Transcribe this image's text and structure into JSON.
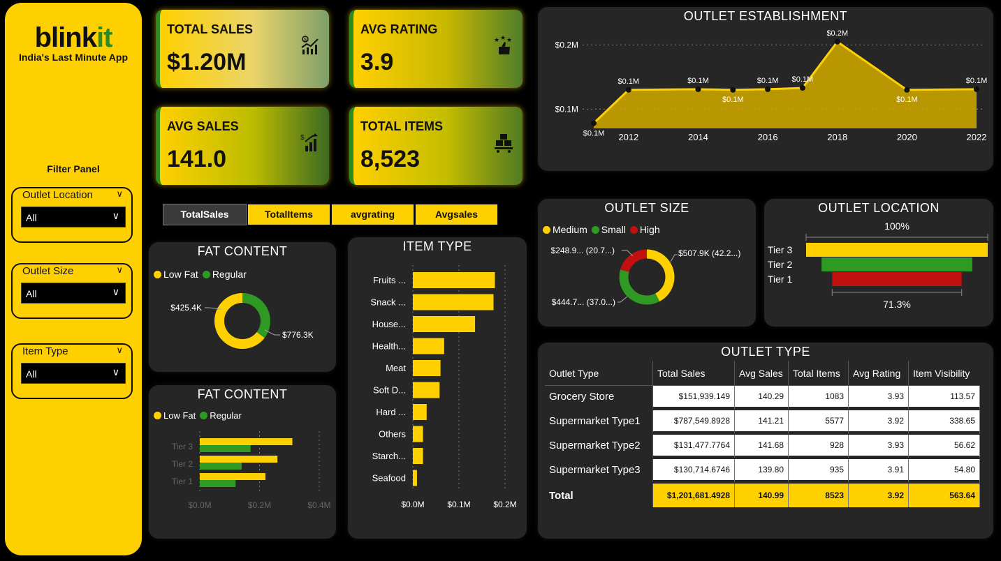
{
  "brand": {
    "name_main": "blink",
    "name_accent": "it",
    "tagline": "India's Last Minute App"
  },
  "filter_panel": {
    "title": "Filter Panel",
    "slicers": [
      {
        "label": "Outlet Location",
        "value": "All"
      },
      {
        "label": "Outlet Size",
        "value": "All"
      },
      {
        "label": "Item Type",
        "value": "All"
      }
    ]
  },
  "kpis": [
    {
      "label": "TOTAL SALES",
      "value": "$1.20M",
      "icon": "sales-chart-icon"
    },
    {
      "label": "AVG RATING",
      "value": "3.9",
      "icon": "rating-thumbs-up-icon"
    },
    {
      "label": "AVG SALES",
      "value": "141.0",
      "icon": "growth-chart-icon"
    },
    {
      "label": "TOTAL ITEMS",
      "value": "8,523",
      "icon": "boxes-cart-icon"
    }
  ],
  "metric_buttons": [
    {
      "label": "TotalSales",
      "selected": true
    },
    {
      "label": "TotalItems",
      "selected": false
    },
    {
      "label": "avgrating",
      "selected": false
    },
    {
      "label": "Avgsales",
      "selected": false
    }
  ],
  "colors": {
    "yellow": "#FFD000",
    "green": "#2e9a24",
    "red": "#c01010",
    "panel": "#262626"
  },
  "outlet_establishment": {
    "title": "OUTLET ESTABLISHMENT",
    "chart_data": {
      "type": "area",
      "x": [
        2011,
        2012,
        2014,
        2015,
        2016,
        2017,
        2018,
        2020,
        2022
      ],
      "values": [
        0.078,
        0.13,
        0.131,
        0.13,
        0.131,
        0.133,
        0.205,
        0.13,
        0.131
      ],
      "point_labels": [
        "$0.1M",
        "$0.1M",
        "$0.1M",
        "$0.1M",
        "$0.1M",
        "$0.1M",
        "$0.2M",
        "$0.1M",
        "$0.1M"
      ],
      "y_ticks": [
        "$0.1M",
        "$0.2M"
      ],
      "x_ticks": [
        "2012",
        "2014",
        "2016",
        "2018",
        "2020",
        "2022"
      ],
      "ylim": [
        0.07,
        0.22
      ]
    }
  },
  "outlet_size": {
    "title": "OUTLET SIZE",
    "legend": [
      "Medium",
      "Small",
      "High"
    ],
    "chart_data": {
      "type": "pie",
      "categories": [
        "Medium",
        "Small",
        "High"
      ],
      "values": [
        507.9,
        444.7,
        248.9
      ],
      "labels": [
        "$507.9K (42.2...)",
        "$444.7... (37.0...)",
        "$248.9... (20.7...)"
      ]
    }
  },
  "outlet_location": {
    "title": "OUTLET LOCATION",
    "top_label": "100%",
    "bottom_label": "71.3%",
    "chart_data": {
      "type": "bar",
      "categories": [
        "Tier 3",
        "Tier 2",
        "Tier 1"
      ],
      "values": [
        100,
        83,
        71.3
      ]
    }
  },
  "fat_content_donut": {
    "title": "FAT CONTENT",
    "legend": [
      "Low Fat",
      "Regular"
    ],
    "chart_data": {
      "type": "pie",
      "categories": [
        "Low Fat",
        "Regular"
      ],
      "values": [
        776.3,
        425.4
      ],
      "labels": [
        "$776.3K",
        "$425.4K"
      ]
    }
  },
  "fat_content_bars": {
    "title": "FAT CONTENT",
    "legend": [
      "Low Fat",
      "Regular"
    ],
    "chart_data": {
      "type": "bar",
      "categories": [
        "Tier 3",
        "Tier 2",
        "Tier 1"
      ],
      "series": [
        {
          "name": "Low Fat",
          "values": [
            0.31,
            0.26,
            0.22
          ]
        },
        {
          "name": "Regular",
          "values": [
            0.17,
            0.14,
            0.12
          ]
        }
      ],
      "x_ticks": [
        "$0.0M",
        "$0.2M",
        "$0.4M"
      ],
      "xlim": [
        0,
        0.4
      ]
    }
  },
  "item_type": {
    "title": "ITEM TYPE",
    "chart_data": {
      "type": "bar",
      "categories": [
        "Fruits ...",
        "Snack ...",
        "House...",
        "Health...",
        "Meat",
        "Soft D...",
        "Hard ...",
        "Others",
        "Starch...",
        "Seafood"
      ],
      "values": [
        0.178,
        0.175,
        0.135,
        0.068,
        0.06,
        0.058,
        0.03,
        0.022,
        0.022,
        0.009
      ],
      "x_ticks": [
        "$0.0M",
        "$0.1M",
        "$0.2M"
      ],
      "xlim": [
        0,
        0.2
      ]
    }
  },
  "outlet_type": {
    "title": "OUTLET TYPE",
    "columns": [
      "Outlet Type",
      "Total Sales",
      "Avg Sales",
      "Total Items",
      "Avg Rating",
      "Item Visibility"
    ],
    "rows": [
      [
        "Grocery Store",
        "$151,939.149",
        "140.29",
        "1083",
        "3.93",
        "113.57"
      ],
      [
        "Supermarket Type1",
        "$787,549.8928",
        "141.21",
        "5577",
        "3.92",
        "338.65"
      ],
      [
        "Supermarket Type2",
        "$131,477.7764",
        "141.68",
        "928",
        "3.93",
        "56.62"
      ],
      [
        "Supermarket Type3",
        "$130,714.6746",
        "139.80",
        "935",
        "3.91",
        "54.80"
      ]
    ],
    "total": [
      "Total",
      "$1,201,681.4928",
      "140.99",
      "8523",
      "3.92",
      "563.64"
    ]
  }
}
